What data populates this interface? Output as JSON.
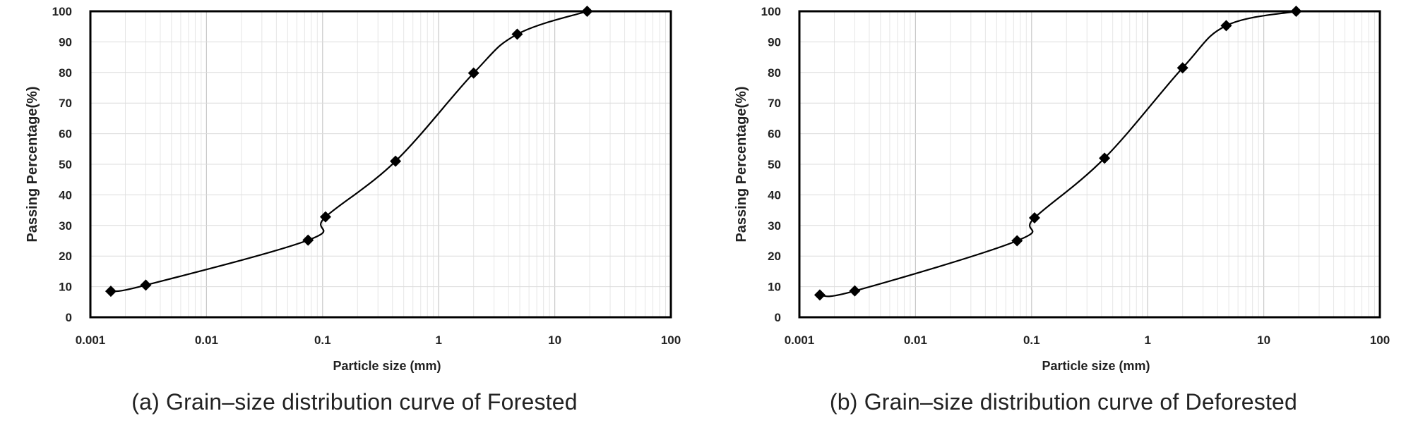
{
  "chart_data": [
    {
      "type": "scatter",
      "subtype": "line-with-markers",
      "caption": "(a) Grain–size distribution curve of Forested",
      "xlabel": "Particle size (mm)",
      "ylabel": "Passing Percentage(%)",
      "xscale": "log",
      "xlim": [
        0.001,
        100
      ],
      "ylim": [
        0,
        100
      ],
      "xticks": [
        "0.001",
        "0.01",
        "0.1",
        "1",
        "10",
        "100"
      ],
      "yticks": [
        "0",
        "10",
        "20",
        "30",
        "40",
        "50",
        "60",
        "70",
        "80",
        "90",
        "100"
      ],
      "grid": true,
      "x": [
        0.0015,
        0.003,
        0.075,
        0.106,
        0.425,
        2.0,
        4.75,
        19.0
      ],
      "y": [
        8.5,
        10.5,
        25.2,
        32.8,
        51.0,
        79.8,
        92.5,
        100.0
      ]
    },
    {
      "type": "scatter",
      "subtype": "line-with-markers",
      "caption": "(b) Grain–size distribution curve of Deforested",
      "xlabel": "Particle size (mm)",
      "ylabel": "Passing Percentage(%)",
      "xscale": "log",
      "xlim": [
        0.001,
        100
      ],
      "ylim": [
        0,
        100
      ],
      "xticks": [
        "0.001",
        "0.01",
        "0.1",
        "1",
        "10",
        "100"
      ],
      "yticks": [
        "0",
        "10",
        "20",
        "30",
        "40",
        "50",
        "60",
        "70",
        "80",
        "90",
        "100"
      ],
      "grid": true,
      "x": [
        0.0015,
        0.003,
        0.075,
        0.106,
        0.425,
        2.0,
        4.75,
        19.0
      ],
      "y": [
        7.3,
        8.6,
        25.0,
        32.5,
        52.0,
        81.5,
        95.3,
        100.0
      ]
    }
  ]
}
